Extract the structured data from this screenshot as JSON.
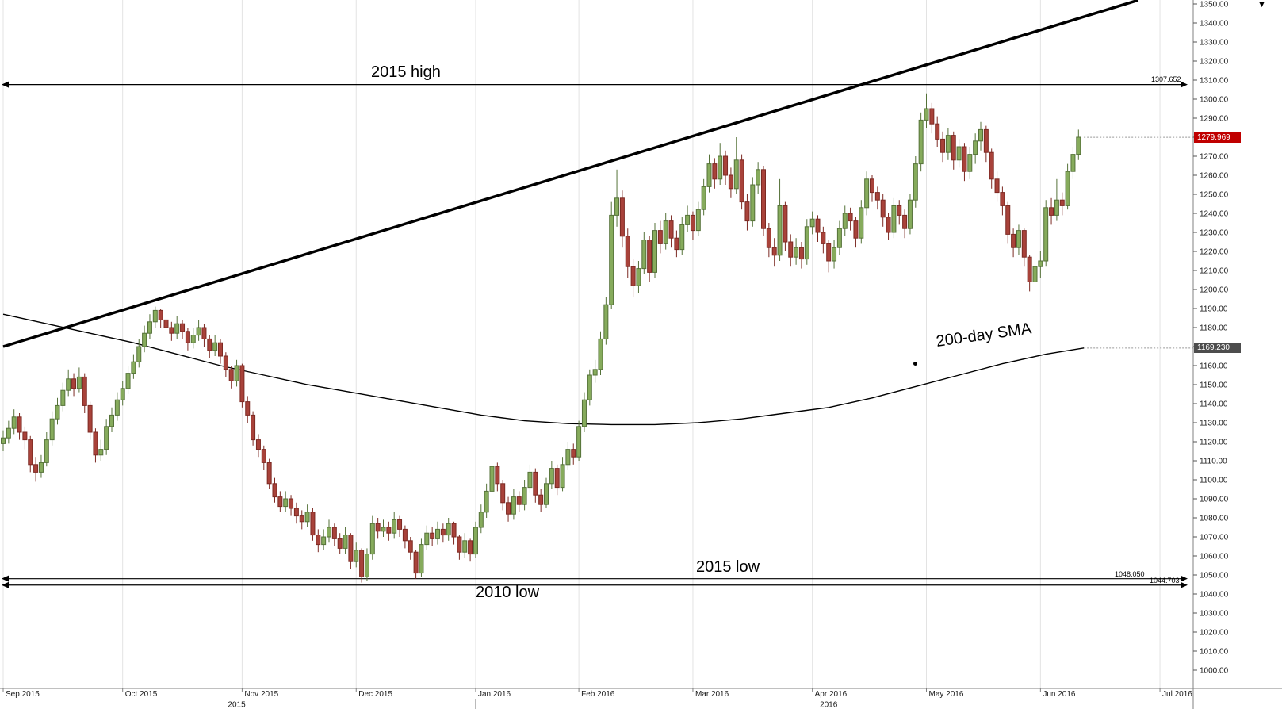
{
  "window": {
    "scroll_arrow": "▼"
  },
  "chart_data": {
    "type": "candlestick",
    "y_axis": {
      "min": 1000,
      "max": 1350,
      "step": 10,
      "side": "right",
      "label_format": "two-decimals"
    },
    "x_axis": {
      "ticks": [
        {
          "label": "Sep 2015",
          "index": 0
        },
        {
          "label": "Oct 2015",
          "index": 22
        },
        {
          "label": "Nov 2015",
          "index": 44
        },
        {
          "label": "Dec 2015",
          "index": 65
        },
        {
          "label": "Jan 2016",
          "index": 87
        },
        {
          "label": "Feb 2016",
          "index": 106
        },
        {
          "label": "Mar 2016",
          "index": 127
        },
        {
          "label": "Apr 2016",
          "index": 149
        },
        {
          "label": "May 2016",
          "index": 170
        },
        {
          "label": "Jun 2016",
          "index": 191
        },
        {
          "label": "Jul 2016",
          "index": 213
        }
      ],
      "year_labels": [
        {
          "label": "2015",
          "center_index": 43
        },
        {
          "label": "2016",
          "center_index": 152
        }
      ]
    },
    "candles_ohlc": [
      [
        1119,
        1126,
        1115,
        1122
      ],
      [
        1122,
        1131,
        1119,
        1127
      ],
      [
        1127,
        1137,
        1124,
        1133
      ],
      [
        1133,
        1135,
        1121,
        1125
      ],
      [
        1125,
        1128,
        1116,
        1121
      ],
      [
        1121,
        1123,
        1104,
        1108
      ],
      [
        1108,
        1112,
        1099,
        1104
      ],
      [
        1104,
        1113,
        1101,
        1109
      ],
      [
        1109,
        1125,
        1107,
        1121
      ],
      [
        1121,
        1136,
        1118,
        1132
      ],
      [
        1132,
        1143,
        1129,
        1139
      ],
      [
        1139,
        1151,
        1136,
        1147
      ],
      [
        1147,
        1158,
        1144,
        1153
      ],
      [
        1153,
        1156,
        1144,
        1148
      ],
      [
        1148,
        1159,
        1146,
        1154
      ],
      [
        1154,
        1156,
        1135,
        1139
      ],
      [
        1139,
        1141,
        1121,
        1125
      ],
      [
        1125,
        1127,
        1109,
        1113
      ],
      [
        1113,
        1121,
        1110,
        1116
      ],
      [
        1116,
        1132,
        1113,
        1128
      ],
      [
        1128,
        1138,
        1125,
        1134
      ],
      [
        1134,
        1146,
        1131,
        1142
      ],
      [
        1142,
        1152,
        1139,
        1148
      ],
      [
        1148,
        1160,
        1145,
        1156
      ],
      [
        1156,
        1166,
        1153,
        1162
      ],
      [
        1162,
        1174,
        1159,
        1170
      ],
      [
        1170,
        1181,
        1167,
        1177
      ],
      [
        1177,
        1187,
        1174,
        1183
      ],
      [
        1183,
        1191,
        1180,
        1189
      ],
      [
        1189,
        1190,
        1180,
        1184
      ],
      [
        1184,
        1187,
        1176,
        1180
      ],
      [
        1180,
        1183,
        1173,
        1177
      ],
      [
        1177,
        1186,
        1174,
        1182
      ],
      [
        1182,
        1184,
        1174,
        1178
      ],
      [
        1178,
        1180,
        1168,
        1172
      ],
      [
        1172,
        1180,
        1169,
        1176
      ],
      [
        1176,
        1184,
        1173,
        1180
      ],
      [
        1180,
        1182,
        1170,
        1174
      ],
      [
        1174,
        1176,
        1164,
        1168
      ],
      [
        1168,
        1176,
        1165,
        1172
      ],
      [
        1172,
        1174,
        1161,
        1165
      ],
      [
        1165,
        1167,
        1154,
        1158
      ],
      [
        1158,
        1160,
        1148,
        1152
      ],
      [
        1152,
        1163,
        1149,
        1160
      ],
      [
        1160,
        1161,
        1138,
        1141
      ],
      [
        1141,
        1144,
        1130,
        1134
      ],
      [
        1134,
        1136,
        1118,
        1121
      ],
      [
        1121,
        1124,
        1112,
        1116
      ],
      [
        1116,
        1118,
        1105,
        1109
      ],
      [
        1109,
        1111,
        1095,
        1098
      ],
      [
        1098,
        1101,
        1088,
        1091
      ],
      [
        1091,
        1094,
        1083,
        1086
      ],
      [
        1086,
        1094,
        1083,
        1090
      ],
      [
        1090,
        1092,
        1081,
        1085
      ],
      [
        1085,
        1088,
        1077,
        1081
      ],
      [
        1081,
        1084,
        1074,
        1078
      ],
      [
        1078,
        1087,
        1075,
        1083
      ],
      [
        1083,
        1085,
        1068,
        1071
      ],
      [
        1071,
        1074,
        1062,
        1066
      ],
      [
        1066,
        1074,
        1063,
        1070
      ],
      [
        1070,
        1079,
        1067,
        1075
      ],
      [
        1075,
        1077,
        1065,
        1069
      ],
      [
        1069,
        1072,
        1061,
        1064
      ],
      [
        1064,
        1075,
        1061,
        1071
      ],
      [
        1071,
        1072,
        1053,
        1057
      ],
      [
        1057,
        1067,
        1054,
        1063
      ],
      [
        1063,
        1064,
        1046,
        1049
      ],
      [
        1049,
        1064,
        1047,
        1061
      ],
      [
        1061,
        1081,
        1058,
        1077
      ],
      [
        1077,
        1080,
        1069,
        1073
      ],
      [
        1073,
        1079,
        1070,
        1075
      ],
      [
        1075,
        1078,
        1068,
        1072
      ],
      [
        1072,
        1083,
        1069,
        1079
      ],
      [
        1079,
        1081,
        1070,
        1074
      ],
      [
        1074,
        1076,
        1064,
        1068
      ],
      [
        1068,
        1070,
        1058,
        1062
      ],
      [
        1062,
        1063,
        1048,
        1051
      ],
      [
        1051,
        1069,
        1049,
        1066
      ],
      [
        1066,
        1076,
        1063,
        1072
      ],
      [
        1072,
        1075,
        1065,
        1069
      ],
      [
        1069,
        1078,
        1066,
        1074
      ],
      [
        1074,
        1077,
        1067,
        1071
      ],
      [
        1071,
        1080,
        1068,
        1077
      ],
      [
        1077,
        1078,
        1066,
        1070
      ],
      [
        1070,
        1071,
        1058,
        1062
      ],
      [
        1062,
        1072,
        1059,
        1068
      ],
      [
        1068,
        1069,
        1057,
        1061
      ],
      [
        1061,
        1078,
        1059,
        1075
      ],
      [
        1075,
        1087,
        1072,
        1083
      ],
      [
        1083,
        1098,
        1080,
        1094
      ],
      [
        1094,
        1110,
        1091,
        1107
      ],
      [
        1107,
        1109,
        1094,
        1098
      ],
      [
        1098,
        1100,
        1084,
        1088
      ],
      [
        1088,
        1091,
        1078,
        1082
      ],
      [
        1082,
        1095,
        1079,
        1091
      ],
      [
        1091,
        1094,
        1083,
        1087
      ],
      [
        1087,
        1100,
        1084,
        1096
      ],
      [
        1096,
        1108,
        1093,
        1104
      ],
      [
        1104,
        1106,
        1088,
        1092
      ],
      [
        1092,
        1095,
        1083,
        1087
      ],
      [
        1087,
        1101,
        1085,
        1098
      ],
      [
        1098,
        1110,
        1095,
        1106
      ],
      [
        1106,
        1108,
        1092,
        1096
      ],
      [
        1096,
        1112,
        1094,
        1108
      ],
      [
        1108,
        1120,
        1105,
        1116
      ],
      [
        1116,
        1119,
        1108,
        1112
      ],
      [
        1112,
        1131,
        1110,
        1128
      ],
      [
        1128,
        1146,
        1125,
        1142
      ],
      [
        1142,
        1158,
        1139,
        1155
      ],
      [
        1155,
        1163,
        1151,
        1158
      ],
      [
        1158,
        1178,
        1155,
        1174
      ],
      [
        1174,
        1196,
        1171,
        1192
      ],
      [
        1192,
        1246,
        1190,
        1239
      ],
      [
        1239,
        1263,
        1233,
        1248
      ],
      [
        1248,
        1252,
        1222,
        1228
      ],
      [
        1228,
        1232,
        1206,
        1212
      ],
      [
        1212,
        1216,
        1196,
        1202
      ],
      [
        1202,
        1215,
        1198,
        1211
      ],
      [
        1211,
        1230,
        1208,
        1226
      ],
      [
        1226,
        1228,
        1204,
        1209
      ],
      [
        1209,
        1235,
        1206,
        1231
      ],
      [
        1231,
        1236,
        1219,
        1224
      ],
      [
        1224,
        1240,
        1221,
        1236
      ],
      [
        1236,
        1239,
        1222,
        1227
      ],
      [
        1227,
        1231,
        1217,
        1221
      ],
      [
        1221,
        1238,
        1218,
        1234
      ],
      [
        1234,
        1244,
        1230,
        1239
      ],
      [
        1239,
        1241,
        1226,
        1231
      ],
      [
        1231,
        1246,
        1228,
        1242
      ],
      [
        1242,
        1258,
        1239,
        1254
      ],
      [
        1254,
        1271,
        1251,
        1266
      ],
      [
        1266,
        1269,
        1253,
        1258
      ],
      [
        1258,
        1277,
        1255,
        1270
      ],
      [
        1270,
        1273,
        1255,
        1260
      ],
      [
        1260,
        1264,
        1248,
        1253
      ],
      [
        1253,
        1280,
        1250,
        1268
      ],
      [
        1268,
        1271,
        1242,
        1246
      ],
      [
        1246,
        1250,
        1231,
        1236
      ],
      [
        1236,
        1259,
        1233,
        1255
      ],
      [
        1255,
        1267,
        1250,
        1263
      ],
      [
        1263,
        1265,
        1228,
        1232
      ],
      [
        1232,
        1235,
        1217,
        1222
      ],
      [
        1222,
        1227,
        1212,
        1218
      ],
      [
        1218,
        1258,
        1215,
        1244
      ],
      [
        1244,
        1246,
        1220,
        1225
      ],
      [
        1225,
        1229,
        1212,
        1217
      ],
      [
        1217,
        1227,
        1213,
        1222
      ],
      [
        1222,
        1225,
        1211,
        1216
      ],
      [
        1216,
        1237,
        1213,
        1233
      ],
      [
        1233,
        1241,
        1229,
        1237
      ],
      [
        1237,
        1239,
        1225,
        1230
      ],
      [
        1230,
        1233,
        1219,
        1224
      ],
      [
        1224,
        1226,
        1209,
        1215
      ],
      [
        1215,
        1226,
        1211,
        1222
      ],
      [
        1222,
        1236,
        1218,
        1232
      ],
      [
        1232,
        1244,
        1228,
        1240
      ],
      [
        1240,
        1243,
        1231,
        1236
      ],
      [
        1236,
        1238,
        1222,
        1227
      ],
      [
        1227,
        1247,
        1224,
        1243
      ],
      [
        1243,
        1262,
        1239,
        1258
      ],
      [
        1258,
        1260,
        1246,
        1251
      ],
      [
        1251,
        1254,
        1242,
        1247
      ],
      [
        1247,
        1250,
        1233,
        1238
      ],
      [
        1238,
        1240,
        1226,
        1230
      ],
      [
        1230,
        1248,
        1227,
        1244
      ],
      [
        1244,
        1247,
        1234,
        1239
      ],
      [
        1239,
        1242,
        1227,
        1232
      ],
      [
        1232,
        1250,
        1229,
        1247
      ],
      [
        1247,
        1270,
        1243,
        1266
      ],
      [
        1266,
        1293,
        1262,
        1289
      ],
      [
        1289,
        1303,
        1285,
        1295
      ],
      [
        1295,
        1298,
        1282,
        1287
      ],
      [
        1287,
        1291,
        1275,
        1279
      ],
      [
        1279,
        1283,
        1267,
        1272
      ],
      [
        1272,
        1285,
        1268,
        1281
      ],
      [
        1281,
        1283,
        1263,
        1268
      ],
      [
        1268,
        1279,
        1264,
        1275
      ],
      [
        1275,
        1277,
        1257,
        1262
      ],
      [
        1262,
        1275,
        1258,
        1271
      ],
      [
        1271,
        1282,
        1266,
        1278
      ],
      [
        1278,
        1288,
        1273,
        1284
      ],
      [
        1284,
        1286,
        1267,
        1272
      ],
      [
        1272,
        1274,
        1253,
        1258
      ],
      [
        1258,
        1262,
        1246,
        1251
      ],
      [
        1251,
        1254,
        1239,
        1244
      ],
      [
        1244,
        1246,
        1224,
        1229
      ],
      [
        1229,
        1232,
        1217,
        1222
      ],
      [
        1222,
        1234,
        1218,
        1231
      ],
      [
        1231,
        1232,
        1212,
        1217
      ],
      [
        1217,
        1218,
        1199,
        1204
      ],
      [
        1204,
        1216,
        1200,
        1212
      ],
      [
        1212,
        1220,
        1206,
        1215
      ],
      [
        1215,
        1247,
        1212,
        1243
      ],
      [
        1243,
        1248,
        1234,
        1239
      ],
      [
        1239,
        1258,
        1236,
        1247
      ],
      [
        1247,
        1251,
        1239,
        1244
      ],
      [
        1244,
        1266,
        1242,
        1262
      ],
      [
        1262,
        1275,
        1258,
        1271
      ],
      [
        1271,
        1284,
        1268,
        1280
      ]
    ],
    "sma_200": {
      "label": "200-day SMA",
      "last_value": 1169.23,
      "value_label": "1169.230",
      "points": [
        [
          0,
          1187
        ],
        [
          8,
          1182
        ],
        [
          16,
          1177
        ],
        [
          24,
          1172
        ],
        [
          32,
          1166
        ],
        [
          40,
          1160
        ],
        [
          48,
          1155
        ],
        [
          56,
          1150
        ],
        [
          64,
          1146
        ],
        [
          72,
          1142
        ],
        [
          80,
          1138
        ],
        [
          88,
          1134
        ],
        [
          96,
          1131
        ],
        [
          104,
          1129.5
        ],
        [
          112,
          1129
        ],
        [
          120,
          1129
        ],
        [
          128,
          1130
        ],
        [
          136,
          1132
        ],
        [
          144,
          1135
        ],
        [
          152,
          1138
        ],
        [
          160,
          1143
        ],
        [
          168,
          1149
        ],
        [
          176,
          1155
        ],
        [
          184,
          1161
        ],
        [
          192,
          1166
        ],
        [
          199,
          1169.23
        ]
      ]
    },
    "last_price": {
      "value": 1279.969,
      "label": "1279.969"
    },
    "trendline": {
      "from_index": 0,
      "from_price": 1170,
      "to_index": 209,
      "to_price": 1352,
      "style": "bold-rising-support"
    },
    "h_levels": [
      {
        "label": "2015 high",
        "value": 1307.652,
        "value_label": "1307.652"
      },
      {
        "label": "2015 low",
        "value": 1048.05,
        "value_label": "1048.050"
      },
      {
        "label": "2010 low",
        "value": 1044.703,
        "value_label": "1044.703"
      }
    ],
    "colors": {
      "up": "#86ab5c",
      "up_border": "#557239",
      "down": "#a8423a",
      "down_border": "#7c2a23",
      "badge_last": "#c00000",
      "badge_sma": "#4d4d4d",
      "grid": "#e3e3e3",
      "trend": "#000000"
    }
  }
}
